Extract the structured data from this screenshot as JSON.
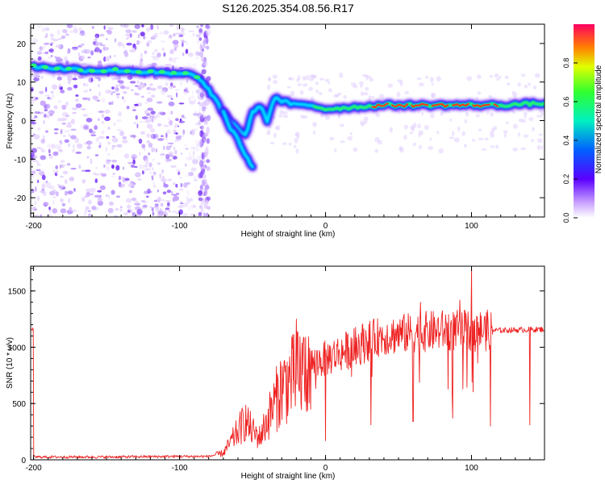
{
  "figure_title": "S126.2025.354.08.56.R17",
  "chart_data": [
    {
      "type": "heatmap",
      "title": "S126.2025.354.08.56.R17",
      "xlabel": "Height of straight line (km)",
      "ylabel": "Frequency (Hz)",
      "xlim": [
        -202,
        150
      ],
      "ylim": [
        -25,
        25
      ],
      "xticks": [
        -200,
        -100,
        0,
        100
      ],
      "yticks": [
        -20,
        -10,
        0,
        10,
        20
      ],
      "colorbar": {
        "label": "Normalized spectral amplitude",
        "range": [
          0,
          1
        ],
        "ticks": [
          0.0,
          0.2,
          0.4,
          0.6,
          0.8
        ]
      },
      "ridge": [
        {
          "x": -200,
          "y": 14
        },
        {
          "x": -180,
          "y": 13.5
        },
        {
          "x": -160,
          "y": 13
        },
        {
          "x": -140,
          "y": 13
        },
        {
          "x": -120,
          "y": 12.5
        },
        {
          "x": -100,
          "y": 12
        },
        {
          "x": -90,
          "y": 12
        },
        {
          "x": -80,
          "y": 8
        },
        {
          "x": -75,
          "y": 5
        },
        {
          "x": -70,
          "y": 2
        },
        {
          "x": -65,
          "y": 0
        },
        {
          "x": -60,
          "y": -2
        },
        {
          "x": -55,
          "y": -4
        },
        {
          "x": -50,
          "y": 2
        },
        {
          "x": -45,
          "y": 4
        },
        {
          "x": -40,
          "y": 0
        },
        {
          "x": -35,
          "y": 6
        },
        {
          "x": -30,
          "y": 5
        },
        {
          "x": -20,
          "y": 4
        },
        {
          "x": -10,
          "y": 4
        },
        {
          "x": 0,
          "y": 3
        },
        {
          "x": 20,
          "y": 3.5
        },
        {
          "x": 40,
          "y": 4
        },
        {
          "x": 60,
          "y": 4
        },
        {
          "x": 80,
          "y": 4
        },
        {
          "x": 100,
          "y": 4
        },
        {
          "x": 120,
          "y": 4
        },
        {
          "x": 150,
          "y": 4.5
        }
      ],
      "branch": [
        {
          "x": -70,
          "y": 2
        },
        {
          "x": -65,
          "y": -2
        },
        {
          "x": -60,
          "y": -5
        },
        {
          "x": -55,
          "y": -9
        },
        {
          "x": -50,
          "y": -12
        }
      ]
    },
    {
      "type": "line",
      "xlabel": "Height of straight line (km)",
      "ylabel": "SNR (10 * v/v)",
      "xlim": [
        -202,
        150
      ],
      "ylim": [
        0,
        1720
      ],
      "xticks": [
        -200,
        -100,
        0,
        100
      ],
      "yticks": [
        0,
        500,
        1000,
        1500
      ],
      "color": "#ee2222",
      "envelope": [
        {
          "x": -200,
          "y": 25
        },
        {
          "x": -150,
          "y": 25
        },
        {
          "x": -100,
          "y": 30
        },
        {
          "x": -80,
          "y": 30
        },
        {
          "x": -70,
          "y": 60
        },
        {
          "x": -60,
          "y": 250
        },
        {
          "x": -55,
          "y": 350
        },
        {
          "x": -50,
          "y": 250
        },
        {
          "x": -45,
          "y": 200
        },
        {
          "x": -40,
          "y": 350
        },
        {
          "x": -35,
          "y": 500
        },
        {
          "x": -30,
          "y": 650
        },
        {
          "x": -20,
          "y": 750
        },
        {
          "x": -10,
          "y": 850
        },
        {
          "x": 0,
          "y": 900
        },
        {
          "x": 10,
          "y": 950
        },
        {
          "x": 20,
          "y": 1000
        },
        {
          "x": 30,
          "y": 1070
        },
        {
          "x": 40,
          "y": 1100
        },
        {
          "x": 60,
          "y": 1130
        },
        {
          "x": 80,
          "y": 1150
        },
        {
          "x": 100,
          "y": 1150
        },
        {
          "x": 120,
          "y": 1150
        },
        {
          "x": 150,
          "y": 1160
        }
      ],
      "dips": [
        {
          "x": 0,
          "y": 170
        },
        {
          "x": 31,
          "y": 310
        },
        {
          "x": 60,
          "y": 340
        },
        {
          "x": 87,
          "y": 370
        },
        {
          "x": 113,
          "y": 300
        },
        {
          "x": 140,
          "y": 310
        }
      ],
      "peaks": [
        {
          "x": -20,
          "y": 1250
        },
        {
          "x": 100,
          "y": 1720
        },
        {
          "x": 92,
          "y": 1420
        },
        {
          "x": 65,
          "y": 1400
        }
      ]
    }
  ]
}
